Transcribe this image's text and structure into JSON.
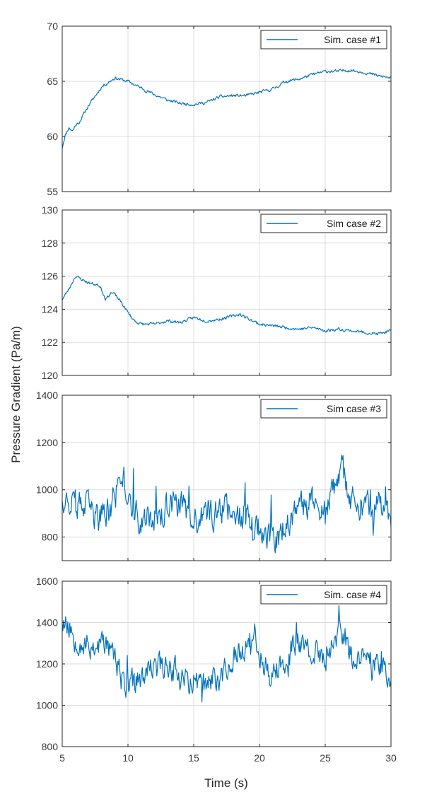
{
  "figure": {
    "ylabel": "Pressure Gradient (Pa/m)",
    "xlabel": "Time (s)",
    "line_color": "#0072BD"
  },
  "chart_data": [
    {
      "type": "line",
      "legend": "Sim. case #1",
      "legend_position": "top-right",
      "grid": true,
      "xlim": [
        5,
        30
      ],
      "ylim": [
        55,
        70
      ],
      "xticks": [
        5,
        10,
        15,
        20,
        25,
        30
      ],
      "yticks": [
        55,
        60,
        65,
        70
      ],
      "noise": 0.12,
      "seed": 11,
      "x": [
        5,
        5.2,
        5.5,
        5.8,
        6,
        6.3,
        7,
        8,
        9,
        10,
        11,
        12,
        13,
        14,
        15,
        16,
        17,
        18,
        19,
        20,
        21,
        22,
        23,
        24,
        25,
        26,
        26.5,
        27,
        28,
        29,
        30
      ],
      "y": [
        59,
        60,
        60.8,
        60.5,
        61,
        61.3,
        62.8,
        64.5,
        65.3,
        65,
        64.4,
        63.8,
        63.3,
        63,
        62.9,
        63.1,
        63.6,
        63.7,
        63.7,
        64,
        64.3,
        65,
        65.2,
        65.6,
        65.9,
        65.9,
        66,
        66,
        65.8,
        65.5,
        65.3
      ]
    },
    {
      "type": "line",
      "legend": "Sim case #2",
      "legend_position": "top-right",
      "grid": true,
      "xlim": [
        5,
        30
      ],
      "ylim": [
        120,
        130
      ],
      "xticks": [
        5,
        10,
        15,
        20,
        25,
        30
      ],
      "yticks": [
        120,
        122,
        124,
        126,
        128,
        130
      ],
      "noise": 0.08,
      "seed": 23,
      "x": [
        5,
        5.5,
        6,
        6.5,
        7,
        7.5,
        7.9,
        8.3,
        8.7,
        9,
        9.5,
        10,
        10.5,
        11,
        12,
        13,
        14,
        15,
        16,
        17,
        18,
        18.5,
        19,
        20,
        21,
        22,
        23,
        24,
        25,
        26,
        27,
        28,
        29,
        30
      ],
      "y": [
        124.6,
        125.2,
        126,
        125.8,
        125.6,
        125.5,
        125.4,
        124.6,
        125,
        124.9,
        124.4,
        123.8,
        123.3,
        123.1,
        123.1,
        123.3,
        123.2,
        123.5,
        123.3,
        123.4,
        123.6,
        123.7,
        123.5,
        123.1,
        123.0,
        122.9,
        122.8,
        122.9,
        122.7,
        122.8,
        122.7,
        122.6,
        122.5,
        122.7
      ]
    },
    {
      "type": "line",
      "legend": "Sim case #3",
      "legend_position": "top-right",
      "grid": true,
      "xlim": [
        5,
        30
      ],
      "ylim": [
        700,
        1400
      ],
      "xticks": [
        5,
        10,
        15,
        20,
        25,
        30
      ],
      "yticks": [
        800,
        1000,
        1200,
        1400
      ],
      "noise": 55,
      "seed": 37,
      "x": [
        5,
        6,
        7,
        7.8,
        8.5,
        9.2,
        9.6,
        10,
        10.5,
        11,
        12,
        13,
        14,
        15,
        16,
        17,
        18,
        19,
        20,
        21,
        21.4,
        22,
        23,
        23.8,
        24.5,
        25,
        25.5,
        26,
        26.3,
        27,
        28,
        29,
        30
      ],
      "y": [
        980,
        930,
        920,
        880,
        910,
        1000,
        1060,
        980,
        900,
        860,
        880,
        920,
        950,
        860,
        880,
        920,
        930,
        880,
        840,
        800,
        780,
        860,
        900,
        960,
        940,
        880,
        980,
        1040,
        1080,
        940,
        920,
        930,
        900
      ]
    },
    {
      "type": "line",
      "legend": "Sim. case #4",
      "legend_position": "top-right",
      "grid": true,
      "xlim": [
        5,
        30
      ],
      "ylim": [
        800,
        1600
      ],
      "xticks": [
        5,
        10,
        15,
        20,
        25,
        30
      ],
      "yticks": [
        800,
        1000,
        1200,
        1400,
        1600
      ],
      "noise": 55,
      "seed": 53,
      "x": [
        5,
        5.5,
        6,
        7,
        8,
        8.7,
        9.5,
        10,
        11,
        12,
        13,
        14,
        15,
        16,
        17,
        18,
        19,
        19.5,
        20,
        21,
        22,
        22.5,
        23,
        24,
        25,
        26,
        26.5,
        27,
        28,
        29,
        30
      ],
      "y": [
        1420,
        1380,
        1330,
        1280,
        1300,
        1280,
        1130,
        1090,
        1120,
        1180,
        1200,
        1150,
        1110,
        1100,
        1140,
        1220,
        1300,
        1350,
        1250,
        1130,
        1220,
        1320,
        1300,
        1250,
        1220,
        1360,
        1340,
        1240,
        1190,
        1220,
        1120
      ]
    }
  ]
}
